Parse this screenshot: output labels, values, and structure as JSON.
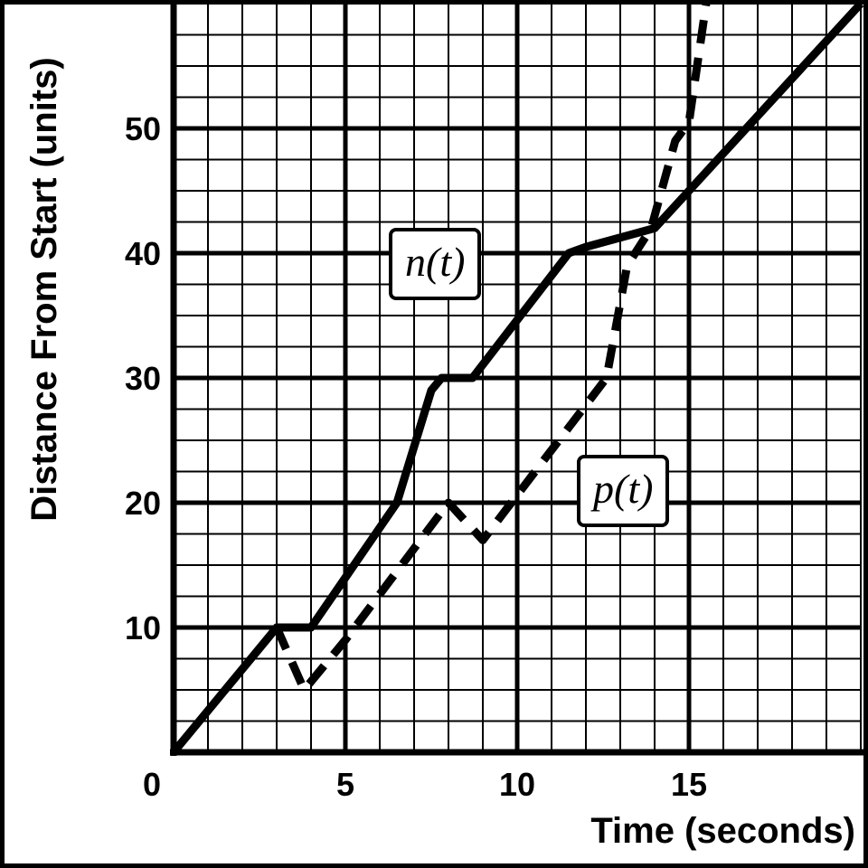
{
  "chart_data": {
    "type": "line",
    "title": "",
    "xlabel": "Time (seconds)",
    "ylabel": "Distance From Start (units)",
    "xlim": [
      0,
      20
    ],
    "ylim": [
      0,
      60
    ],
    "x_ticks": [
      0,
      5,
      10,
      15
    ],
    "y_ticks": [
      10,
      20,
      30,
      40,
      50
    ],
    "grid": true,
    "minor_grid_step_x": 1,
    "minor_grid_step_y": 2.5,
    "series": [
      {
        "name": "n(t)",
        "style": "solid",
        "color": "#000000",
        "points": [
          [
            0,
            0
          ],
          [
            3,
            10
          ],
          [
            4,
            10
          ],
          [
            6.5,
            20
          ],
          [
            7.5,
            29
          ],
          [
            7.8,
            30
          ],
          [
            8.7,
            30
          ],
          [
            11.5,
            40
          ],
          [
            12,
            40.5
          ],
          [
            14,
            42
          ],
          [
            15,
            45
          ],
          [
            20,
            60
          ]
        ]
      },
      {
        "name": "p(t)",
        "style": "dashed",
        "color": "#000000",
        "points": [
          [
            3,
            10
          ],
          [
            3.8,
            5
          ],
          [
            5,
            9
          ],
          [
            8,
            20
          ],
          [
            9,
            17
          ],
          [
            12.6,
            30
          ],
          [
            13.2,
            39
          ],
          [
            13.9,
            42
          ],
          [
            14.6,
            49
          ],
          [
            15,
            50.5
          ],
          [
            15.5,
            60
          ]
        ]
      }
    ]
  }
}
